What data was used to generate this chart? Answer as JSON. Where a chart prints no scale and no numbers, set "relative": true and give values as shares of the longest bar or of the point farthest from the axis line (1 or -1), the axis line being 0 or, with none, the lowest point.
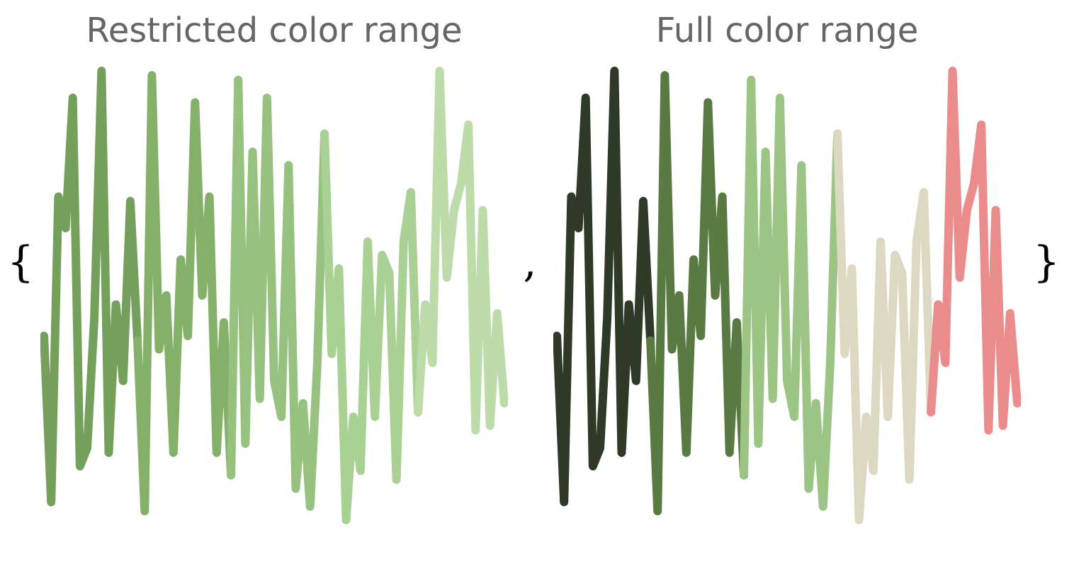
{
  "chart_data": [
    {
      "type": "line",
      "title": "Restricted color range",
      "relative": true,
      "annotations": [
        "{",
        ","
      ],
      "categories": [
        null,
        null,
        null,
        null,
        null,
        null,
        null,
        null,
        null,
        null,
        null,
        null,
        null,
        null,
        null,
        null,
        null,
        null,
        null,
        null,
        null,
        null,
        null,
        null,
        null,
        null,
        null,
        null,
        null,
        null,
        null,
        null,
        null,
        null,
        null,
        null,
        null,
        null,
        null,
        null,
        null,
        null,
        null,
        null,
        null,
        null,
        null,
        null,
        null,
        null,
        null,
        null,
        null,
        null,
        null,
        null,
        null,
        null,
        null,
        null,
        null,
        null,
        null,
        null,
        null
      ],
      "series": [
        {
          "color": "#75a05c",
          "values": [
            0.41,
            0.04,
            0.72,
            0.65,
            0.94,
            0.12,
            0.16,
            0.45,
            1.0,
            0.15,
            0.48,
            0.31,
            0.71,
            0.4,
            null,
            null,
            null,
            null,
            null,
            null,
            null,
            null,
            null,
            null,
            null,
            null,
            null,
            null,
            null,
            null,
            null,
            null,
            null,
            null,
            null,
            null,
            null,
            null,
            null,
            null,
            null,
            null,
            null,
            null,
            null,
            null,
            null,
            null,
            null,
            null,
            null,
            null,
            null,
            null,
            null,
            null,
            null,
            null,
            null,
            null,
            null,
            null,
            null,
            null,
            null
          ]
        },
        {
          "color": "#84b06a",
          "values": [
            null,
            null,
            null,
            null,
            null,
            null,
            null,
            null,
            null,
            null,
            null,
            null,
            null,
            0.4,
            0.02,
            0.99,
            0.38,
            0.5,
            0.15,
            0.58,
            0.41,
            0.93,
            0.5,
            0.72,
            0.15,
            0.44,
            0.1,
            null,
            null,
            null,
            null,
            null,
            null,
            null,
            null,
            null,
            null,
            null,
            null,
            null,
            null,
            null,
            null,
            null,
            null,
            null,
            null,
            null,
            null,
            null,
            null,
            null,
            null,
            null,
            null,
            null,
            null,
            null,
            null,
            null,
            null,
            null,
            null,
            null,
            null
          ]
        },
        {
          "color": "#96c17e",
          "values": [
            null,
            null,
            null,
            null,
            null,
            null,
            null,
            null,
            null,
            null,
            null,
            null,
            null,
            null,
            null,
            null,
            null,
            null,
            null,
            null,
            null,
            null,
            null,
            null,
            null,
            null,
            0.1,
            0.98,
            0.17,
            0.82,
            0.27,
            0.94,
            0.31,
            0.23,
            0.79,
            0.07,
            0.26,
            0.03,
            0.35,
            0.86,
            null,
            null,
            null,
            null,
            null,
            null,
            null,
            null,
            null,
            null,
            null,
            null,
            null,
            null,
            null,
            null,
            null,
            null,
            null,
            null,
            null,
            null,
            null,
            null,
            null
          ]
        },
        {
          "color": "#a9d194",
          "values": [
            null,
            null,
            null,
            null,
            null,
            null,
            null,
            null,
            null,
            null,
            null,
            null,
            null,
            null,
            null,
            null,
            null,
            null,
            null,
            null,
            null,
            null,
            null,
            null,
            null,
            null,
            null,
            null,
            null,
            null,
            null,
            null,
            null,
            null,
            null,
            null,
            null,
            null,
            null,
            0.86,
            0.37,
            0.56,
            0.0,
            0.23,
            0.11,
            0.62,
            0.23,
            0.59,
            0.55,
            0.09,
            0.62,
            0.73,
            0.24,
            null,
            null,
            null,
            null,
            null,
            null,
            null,
            null,
            null,
            null,
            null,
            null
          ]
        },
        {
          "color": "#bedcaa",
          "values": [
            null,
            null,
            null,
            null,
            null,
            null,
            null,
            null,
            null,
            null,
            null,
            null,
            null,
            null,
            null,
            null,
            null,
            null,
            null,
            null,
            null,
            null,
            null,
            null,
            null,
            null,
            null,
            null,
            null,
            null,
            null,
            null,
            null,
            null,
            null,
            null,
            null,
            null,
            null,
            null,
            null,
            null,
            null,
            null,
            null,
            null,
            null,
            null,
            null,
            null,
            null,
            null,
            0.24,
            0.48,
            0.35,
            1.0,
            0.54,
            0.69,
            0.75,
            0.88,
            0.2,
            0.69,
            0.21,
            0.46,
            0.26
          ]
        }
      ]
    },
    {
      "type": "line",
      "title": "Full color range",
      "relative": true,
      "annotations": [
        "}"
      ],
      "categories": [
        null,
        null,
        null,
        null,
        null,
        null,
        null,
        null,
        null,
        null,
        null,
        null,
        null,
        null,
        null,
        null,
        null,
        null,
        null,
        null,
        null,
        null,
        null,
        null,
        null,
        null,
        null,
        null,
        null,
        null,
        null,
        null,
        null,
        null,
        null,
        null,
        null,
        null,
        null,
        null,
        null,
        null,
        null,
        null,
        null,
        null,
        null,
        null,
        null,
        null,
        null,
        null,
        null,
        null,
        null,
        null,
        null,
        null,
        null,
        null,
        null,
        null,
        null,
        null,
        null
      ],
      "series": [
        {
          "color": "#2e3a27",
          "values": [
            0.41,
            0.04,
            0.72,
            0.65,
            0.94,
            0.12,
            0.16,
            0.45,
            1.0,
            0.15,
            0.48,
            0.31,
            0.71,
            0.4,
            null,
            null,
            null,
            null,
            null,
            null,
            null,
            null,
            null,
            null,
            null,
            null,
            null,
            null,
            null,
            null,
            null,
            null,
            null,
            null,
            null,
            null,
            null,
            null,
            null,
            null,
            null,
            null,
            null,
            null,
            null,
            null,
            null,
            null,
            null,
            null,
            null,
            null,
            null,
            null,
            null,
            null,
            null,
            null,
            null,
            null,
            null,
            null,
            null,
            null,
            null
          ]
        },
        {
          "color": "#5a7a44",
          "values": [
            null,
            null,
            null,
            null,
            null,
            null,
            null,
            null,
            null,
            null,
            null,
            null,
            null,
            0.4,
            0.02,
            0.99,
            0.38,
            0.5,
            0.15,
            0.58,
            0.41,
            0.93,
            0.5,
            0.72,
            0.15,
            0.44,
            0.1,
            null,
            null,
            null,
            null,
            null,
            null,
            null,
            null,
            null,
            null,
            null,
            null,
            null,
            null,
            null,
            null,
            null,
            null,
            null,
            null,
            null,
            null,
            null,
            null,
            null,
            null,
            null,
            null,
            null,
            null,
            null,
            null,
            null,
            null,
            null,
            null,
            null,
            null
          ]
        },
        {
          "color": "#9cc585",
          "values": [
            null,
            null,
            null,
            null,
            null,
            null,
            null,
            null,
            null,
            null,
            null,
            null,
            null,
            null,
            null,
            null,
            null,
            null,
            null,
            null,
            null,
            null,
            null,
            null,
            null,
            null,
            0.1,
            0.98,
            0.17,
            0.82,
            0.27,
            0.94,
            0.31,
            0.23,
            0.79,
            0.07,
            0.26,
            0.03,
            0.35,
            0.86,
            null,
            null,
            null,
            null,
            null,
            null,
            null,
            null,
            null,
            null,
            null,
            null,
            null,
            null,
            null,
            null,
            null,
            null,
            null,
            null,
            null,
            null,
            null,
            null,
            null
          ]
        },
        {
          "color": "#dcd8c2",
          "values": [
            null,
            null,
            null,
            null,
            null,
            null,
            null,
            null,
            null,
            null,
            null,
            null,
            null,
            null,
            null,
            null,
            null,
            null,
            null,
            null,
            null,
            null,
            null,
            null,
            null,
            null,
            null,
            null,
            null,
            null,
            null,
            null,
            null,
            null,
            null,
            null,
            null,
            null,
            null,
            0.86,
            0.37,
            0.56,
            0.0,
            0.23,
            0.11,
            0.62,
            0.23,
            0.59,
            0.55,
            0.09,
            0.62,
            0.73,
            0.24,
            null,
            null,
            null,
            null,
            null,
            null,
            null,
            null,
            null,
            null,
            null,
            null
          ]
        },
        {
          "color": "#ea8c8c",
          "values": [
            null,
            null,
            null,
            null,
            null,
            null,
            null,
            null,
            null,
            null,
            null,
            null,
            null,
            null,
            null,
            null,
            null,
            null,
            null,
            null,
            null,
            null,
            null,
            null,
            null,
            null,
            null,
            null,
            null,
            null,
            null,
            null,
            null,
            null,
            null,
            null,
            null,
            null,
            null,
            null,
            null,
            null,
            null,
            null,
            null,
            null,
            null,
            null,
            null,
            null,
            null,
            null,
            0.24,
            0.48,
            0.35,
            1.0,
            0.54,
            0.69,
            0.75,
            0.88,
            0.2,
            0.69,
            0.21,
            0.46,
            0.26
          ]
        }
      ]
    }
  ]
}
